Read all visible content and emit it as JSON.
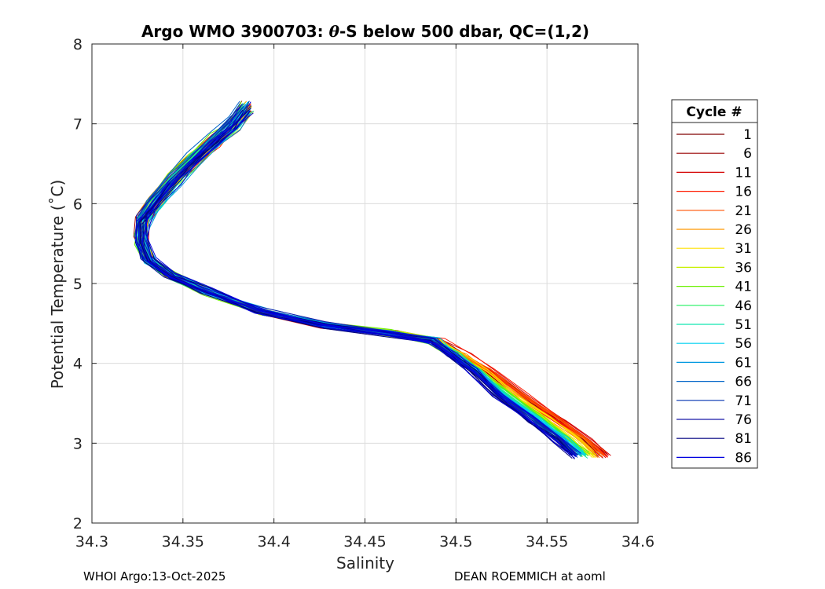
{
  "chart_data": {
    "type": "line",
    "title_prefix": "Argo WMO 3900703: ",
    "title_theta": "θ",
    "title_suffix": "-S below 500 dbar,  QC=(1,2)",
    "xlabel": "Salinity",
    "ylabel": "Potential Temperature (˚C)",
    "xlim": [
      34.3,
      34.6
    ],
    "ylim": [
      2,
      8
    ],
    "xticks": [
      "34.3",
      "34.35",
      "34.4",
      "34.45",
      "34.5",
      "34.55",
      "34.6"
    ],
    "yticks": [
      "2",
      "3",
      "4",
      "5",
      "6",
      "7",
      "8"
    ],
    "grid": true,
    "legend_title": "Cycle #",
    "legend_position": "right",
    "series": [
      {
        "name": "1",
        "color": "#800000",
        "shift": 0.01
      },
      {
        "name": "6",
        "color": "#9a0000",
        "shift": 0.012
      },
      {
        "name": "11",
        "color": "#d40000",
        "shift": 0.014
      },
      {
        "name": "16",
        "color": "#ff1a00",
        "shift": 0.013
      },
      {
        "name": "21",
        "color": "#ff5000",
        "shift": 0.012
      },
      {
        "name": "26",
        "color": "#ff9600",
        "shift": 0.009
      },
      {
        "name": "31",
        "color": "#ffe000",
        "shift": 0.006
      },
      {
        "name": "36",
        "color": "#c8f000",
        "shift": 0.004
      },
      {
        "name": "41",
        "color": "#6af000",
        "shift": 0.002
      },
      {
        "name": "46",
        "color": "#20f060",
        "shift": 0.001
      },
      {
        "name": "51",
        "color": "#10e8b0",
        "shift": 0.0
      },
      {
        "name": "56",
        "color": "#00d0f0",
        "shift": -0.001
      },
      {
        "name": "61",
        "color": "#0098e0",
        "shift": -0.002
      },
      {
        "name": "66",
        "color": "#0064c8",
        "shift": -0.003
      },
      {
        "name": "71",
        "color": "#0030b0",
        "shift": -0.004
      },
      {
        "name": "76",
        "color": "#1818a8",
        "shift": -0.005
      },
      {
        "name": "81",
        "color": "#000080",
        "shift": -0.006
      },
      {
        "name": "86",
        "color": "#0000e0",
        "shift": -0.004
      }
    ],
    "base_profile": {
      "salinity": [
        34.385,
        34.378,
        34.368,
        34.356,
        34.345,
        34.334,
        34.328,
        34.327,
        34.331,
        34.343,
        34.363,
        34.393,
        34.428,
        34.463,
        34.488,
        34.5,
        34.512,
        34.527,
        34.545,
        34.56,
        34.57
      ],
      "temperature": [
        7.2,
        7.0,
        6.8,
        6.55,
        6.3,
        6.0,
        5.8,
        5.55,
        5.3,
        5.1,
        4.9,
        4.65,
        4.48,
        4.38,
        4.28,
        4.1,
        3.9,
        3.6,
        3.3,
        3.05,
        2.85
      ]
    }
  },
  "footer": {
    "left": "WHOI Argo:13-Oct-2025",
    "right": "DEAN ROEMMICH at aoml"
  }
}
